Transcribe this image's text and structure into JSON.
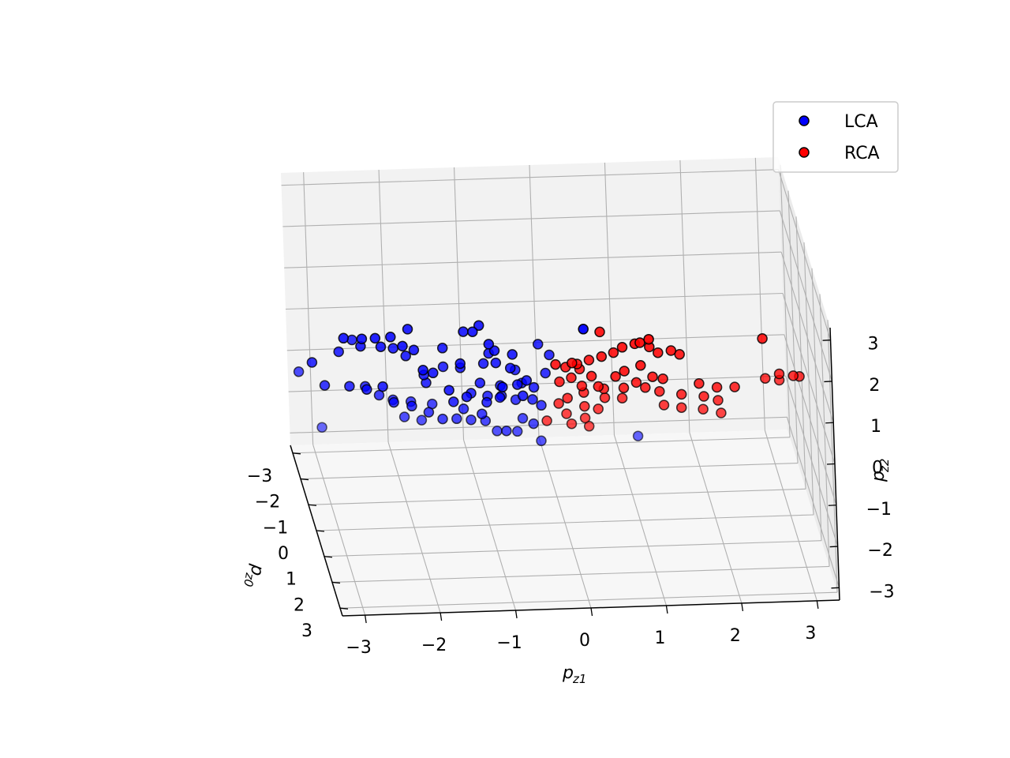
{
  "chart_data": {
    "type": "scatter",
    "projection": "3d",
    "axes": {
      "x": {
        "label_base": "p",
        "label_sub": "z1",
        "ticks": [
          "−3",
          "−2",
          "−1",
          "0",
          "1",
          "2",
          "3"
        ],
        "range": [
          -3.3,
          3.3
        ]
      },
      "y": {
        "label_base": "p",
        "label_sub": "z0",
        "ticks": [
          "−3",
          "−2",
          "−1",
          "0",
          "1",
          "2",
          "3"
        ],
        "range": [
          -3.3,
          3.3
        ]
      },
      "z": {
        "label_base": "p",
        "label_sub": "z2",
        "ticks": [
          "−3",
          "−2",
          "−1",
          "0",
          "1",
          "2",
          "3"
        ],
        "range": [
          -3.3,
          3.3
        ]
      }
    },
    "grid": true,
    "legend": {
      "position": "top-right",
      "entries": [
        "LCA",
        "RCA"
      ]
    },
    "colors": {
      "LCA": "#0000ff",
      "RCA": "#ff0000",
      "edge": "#000000",
      "pane_back": "#f2f2f2",
      "pane_side": "#ebebeb",
      "pane_floor": "#f7f7f7",
      "grid": "#b0b0b0"
    },
    "series": [
      {
        "name": "LCA",
        "points": [
          [
            -2.72,
            1.18,
            2.05
          ],
          [
            -2.55,
            1.25,
            2.1
          ],
          [
            -2.2,
            1.35,
            1.95
          ],
          [
            -2.35,
            1.3,
            2.15
          ],
          [
            -2.1,
            1.1,
            2.2
          ],
          [
            -2.95,
            1.05,
            2.0
          ],
          [
            -1.25,
            1.2,
            2.15
          ],
          [
            -1.15,
            1.05,
            2.2
          ],
          [
            -1.35,
            0.95,
            2.0
          ],
          [
            -1.05,
            1.3,
            1.9
          ],
          [
            0.1,
            2.5,
            2.95
          ],
          [
            -2.0,
            0.8,
            1.5
          ],
          [
            -2.1,
            0.7,
            1.3
          ],
          [
            -1.9,
            0.95,
            1.1
          ],
          [
            -2.25,
            0.55,
            1.4
          ],
          [
            -1.6,
            0.6,
            1.4
          ],
          [
            -1.4,
            0.9,
            1.2
          ],
          [
            -1.75,
            0.75,
            0.9
          ],
          [
            -1.85,
            0.5,
            0.7
          ],
          [
            -1.55,
            0.8,
            0.5
          ],
          [
            -1.0,
            0.7,
            1.3
          ],
          [
            -0.9,
            0.6,
            1.0
          ],
          [
            -0.7,
            0.5,
            0.8
          ],
          [
            -0.85,
            0.9,
            0.6
          ],
          [
            -1.1,
            0.4,
            0.4
          ],
          [
            -1.3,
            0.6,
            0.2
          ],
          [
            -1.45,
            0.3,
            -0.1
          ],
          [
            -1.2,
            0.15,
            0.0
          ],
          [
            -1.0,
            0.2,
            -0.2
          ],
          [
            -0.8,
            0.05,
            0.1
          ],
          [
            -0.6,
            0.35,
            0.3
          ],
          [
            -0.5,
            -0.1,
            0.05
          ],
          [
            -0.95,
            -0.2,
            -0.3
          ],
          [
            -0.75,
            -0.35,
            -0.4
          ],
          [
            -0.55,
            -0.5,
            -0.6
          ],
          [
            -0.35,
            -0.25,
            -0.45
          ],
          [
            -0.2,
            0.1,
            0.4
          ],
          [
            -0.15,
            0.2,
            0.9
          ],
          [
            -0.3,
            0.25,
            1.2
          ],
          [
            -0.6,
            0.1,
            0.5
          ],
          [
            -2.4,
            0.5,
            0.45
          ],
          [
            -2.6,
            0.35,
            0.3
          ],
          [
            -2.8,
            0.05,
            0.2
          ],
          [
            -3.1,
            -0.25,
            0.05
          ],
          [
            -3.3,
            0.2,
            0.9
          ],
          [
            -2.95,
            0.3,
            1.2
          ],
          [
            -2.75,
            0.1,
            1.35
          ],
          [
            -3.35,
            -1.2,
            -0.2
          ],
          [
            -2.2,
            -0.15,
            -0.35
          ],
          [
            -1.95,
            -0.3,
            -0.55
          ],
          [
            -1.7,
            -0.6,
            -0.9
          ],
          [
            -1.5,
            -0.8,
            -1.2
          ],
          [
            -1.3,
            -0.95,
            -1.3
          ],
          [
            -1.1,
            -1.05,
            -1.4
          ],
          [
            -0.9,
            -1.15,
            -1.5
          ],
          [
            -0.65,
            -0.9,
            -1.6
          ],
          [
            -0.4,
            -1.2,
            -1.5
          ],
          [
            -0.25,
            -1.3,
            -1.7
          ],
          [
            -0.45,
            -1.5,
            -2.0
          ],
          [
            -0.7,
            -1.7,
            -2.1
          ],
          [
            -1.95,
            -1.4,
            -1.5
          ],
          [
            -1.7,
            -1.65,
            -1.75
          ],
          [
            1.25,
            -2.6,
            -2.9
          ],
          [
            -0.1,
            -1.9,
            -2.5
          ],
          [
            -2.9,
            -3.0,
            -2.7
          ],
          [
            -1.55,
            0.05,
            0.6
          ],
          [
            -1.25,
            -0.45,
            -0.75
          ],
          [
            -1.05,
            0.45,
            0.9
          ],
          [
            -0.8,
            -0.05,
            -0.25
          ],
          [
            -0.55,
            0.55,
            0.15
          ],
          [
            -2.55,
            -0.4,
            -0.1
          ],
          [
            -2.35,
            -0.6,
            -0.45
          ],
          [
            -2.15,
            -0.8,
            -0.7
          ],
          [
            -1.9,
            -0.95,
            -0.85
          ],
          [
            -1.6,
            -1.15,
            -1.05
          ],
          [
            -1.35,
            0.35,
            0.75
          ],
          [
            -0.95,
            1.0,
            1.55
          ],
          [
            -0.7,
            0.85,
            1.35
          ],
          [
            -2.45,
            0.95,
            1.7
          ],
          [
            -2.7,
            0.75,
            1.6
          ],
          [
            -1.0,
            -0.55,
            -0.95
          ],
          [
            -0.35,
            0.0,
            0.0
          ],
          [
            -0.5,
            0.6,
            0.55
          ],
          [
            -1.8,
            0.25,
            0.35
          ],
          [
            -0.2,
            -0.65,
            -0.85
          ]
        ]
      },
      {
        "name": "RCA",
        "points": [
          [
            0.4,
            1.6,
            2.3
          ],
          [
            1.0,
            2.1,
            2.4
          ],
          [
            0.7,
            1.5,
            1.85
          ],
          [
            0.85,
            1.7,
            2.05
          ],
          [
            0.6,
            1.3,
            1.6
          ],
          [
            0.45,
            1.2,
            1.45
          ],
          [
            0.3,
            1.0,
            1.25
          ],
          [
            0.15,
            0.9,
            1.1
          ],
          [
            0.0,
            0.85,
            1.0
          ],
          [
            0.2,
            0.7,
            0.85
          ],
          [
            0.35,
            0.75,
            0.7
          ],
          [
            0.1,
            0.55,
            0.55
          ],
          [
            -0.05,
            0.45,
            0.4
          ],
          [
            0.25,
            0.4,
            0.25
          ],
          [
            0.45,
            0.6,
            0.35
          ],
          [
            0.55,
            0.3,
            0.1
          ],
          [
            0.3,
            0.1,
            -0.1
          ],
          [
            0.1,
            -0.1,
            -0.35
          ],
          [
            0.0,
            -0.3,
            -0.6
          ],
          [
            0.35,
            -0.4,
            -0.75
          ],
          [
            0.55,
            -0.6,
            -0.95
          ],
          [
            0.15,
            -0.85,
            -1.2
          ],
          [
            -0.1,
            -1.0,
            -1.45
          ],
          [
            0.25,
            -1.25,
            -1.7
          ],
          [
            0.5,
            -1.45,
            -1.9
          ],
          [
            1.1,
            0.3,
            0.1
          ],
          [
            1.3,
            0.15,
            -0.1
          ],
          [
            1.6,
            0.05,
            -0.25
          ],
          [
            1.9,
            0.0,
            -0.35
          ],
          [
            2.1,
            -0.15,
            -0.55
          ],
          [
            1.4,
            -0.35,
            -0.75
          ],
          [
            1.65,
            -0.55,
            -0.95
          ],
          [
            1.95,
            -0.7,
            -1.1
          ],
          [
            2.2,
            -0.85,
            -1.3
          ],
          [
            1.2,
            1.2,
            1.5
          ],
          [
            1.5,
            1.05,
            1.35
          ],
          [
            1.35,
            1.45,
            1.7
          ],
          [
            1.05,
            1.6,
            1.9
          ],
          [
            0.9,
            1.9,
            2.2
          ],
          [
            2.9,
            0.1,
            0.2
          ],
          [
            3.1,
            -0.05,
            0.05
          ],
          [
            2.75,
            -0.3,
            -0.15
          ],
          [
            2.95,
            -0.45,
            -0.3
          ],
          [
            3.2,
            -0.25,
            -0.1
          ],
          [
            2.6,
            1.1,
            1.7
          ],
          [
            0.8,
            0.45,
            0.2
          ],
          [
            0.95,
            0.65,
            0.45
          ],
          [
            0.65,
            0.95,
            0.8
          ],
          [
            0.75,
            1.15,
            1.05
          ],
          [
            1.15,
            0.85,
            0.7
          ],
          [
            0.05,
            1.25,
            1.35
          ],
          [
            -0.15,
            1.05,
            1.2
          ],
          [
            0.6,
            -0.15,
            -0.4
          ],
          [
            0.85,
            -0.35,
            -0.55
          ],
          [
            1.8,
            0.45,
            0.25
          ],
          [
            2.05,
            0.3,
            0.05
          ],
          [
            2.3,
            0.15,
            -0.05
          ],
          [
            0.95,
            1.35,
            1.3
          ],
          [
            1.3,
            0.7,
            0.55
          ],
          [
            0.4,
            -0.9,
            -1.35
          ]
        ]
      }
    ]
  }
}
